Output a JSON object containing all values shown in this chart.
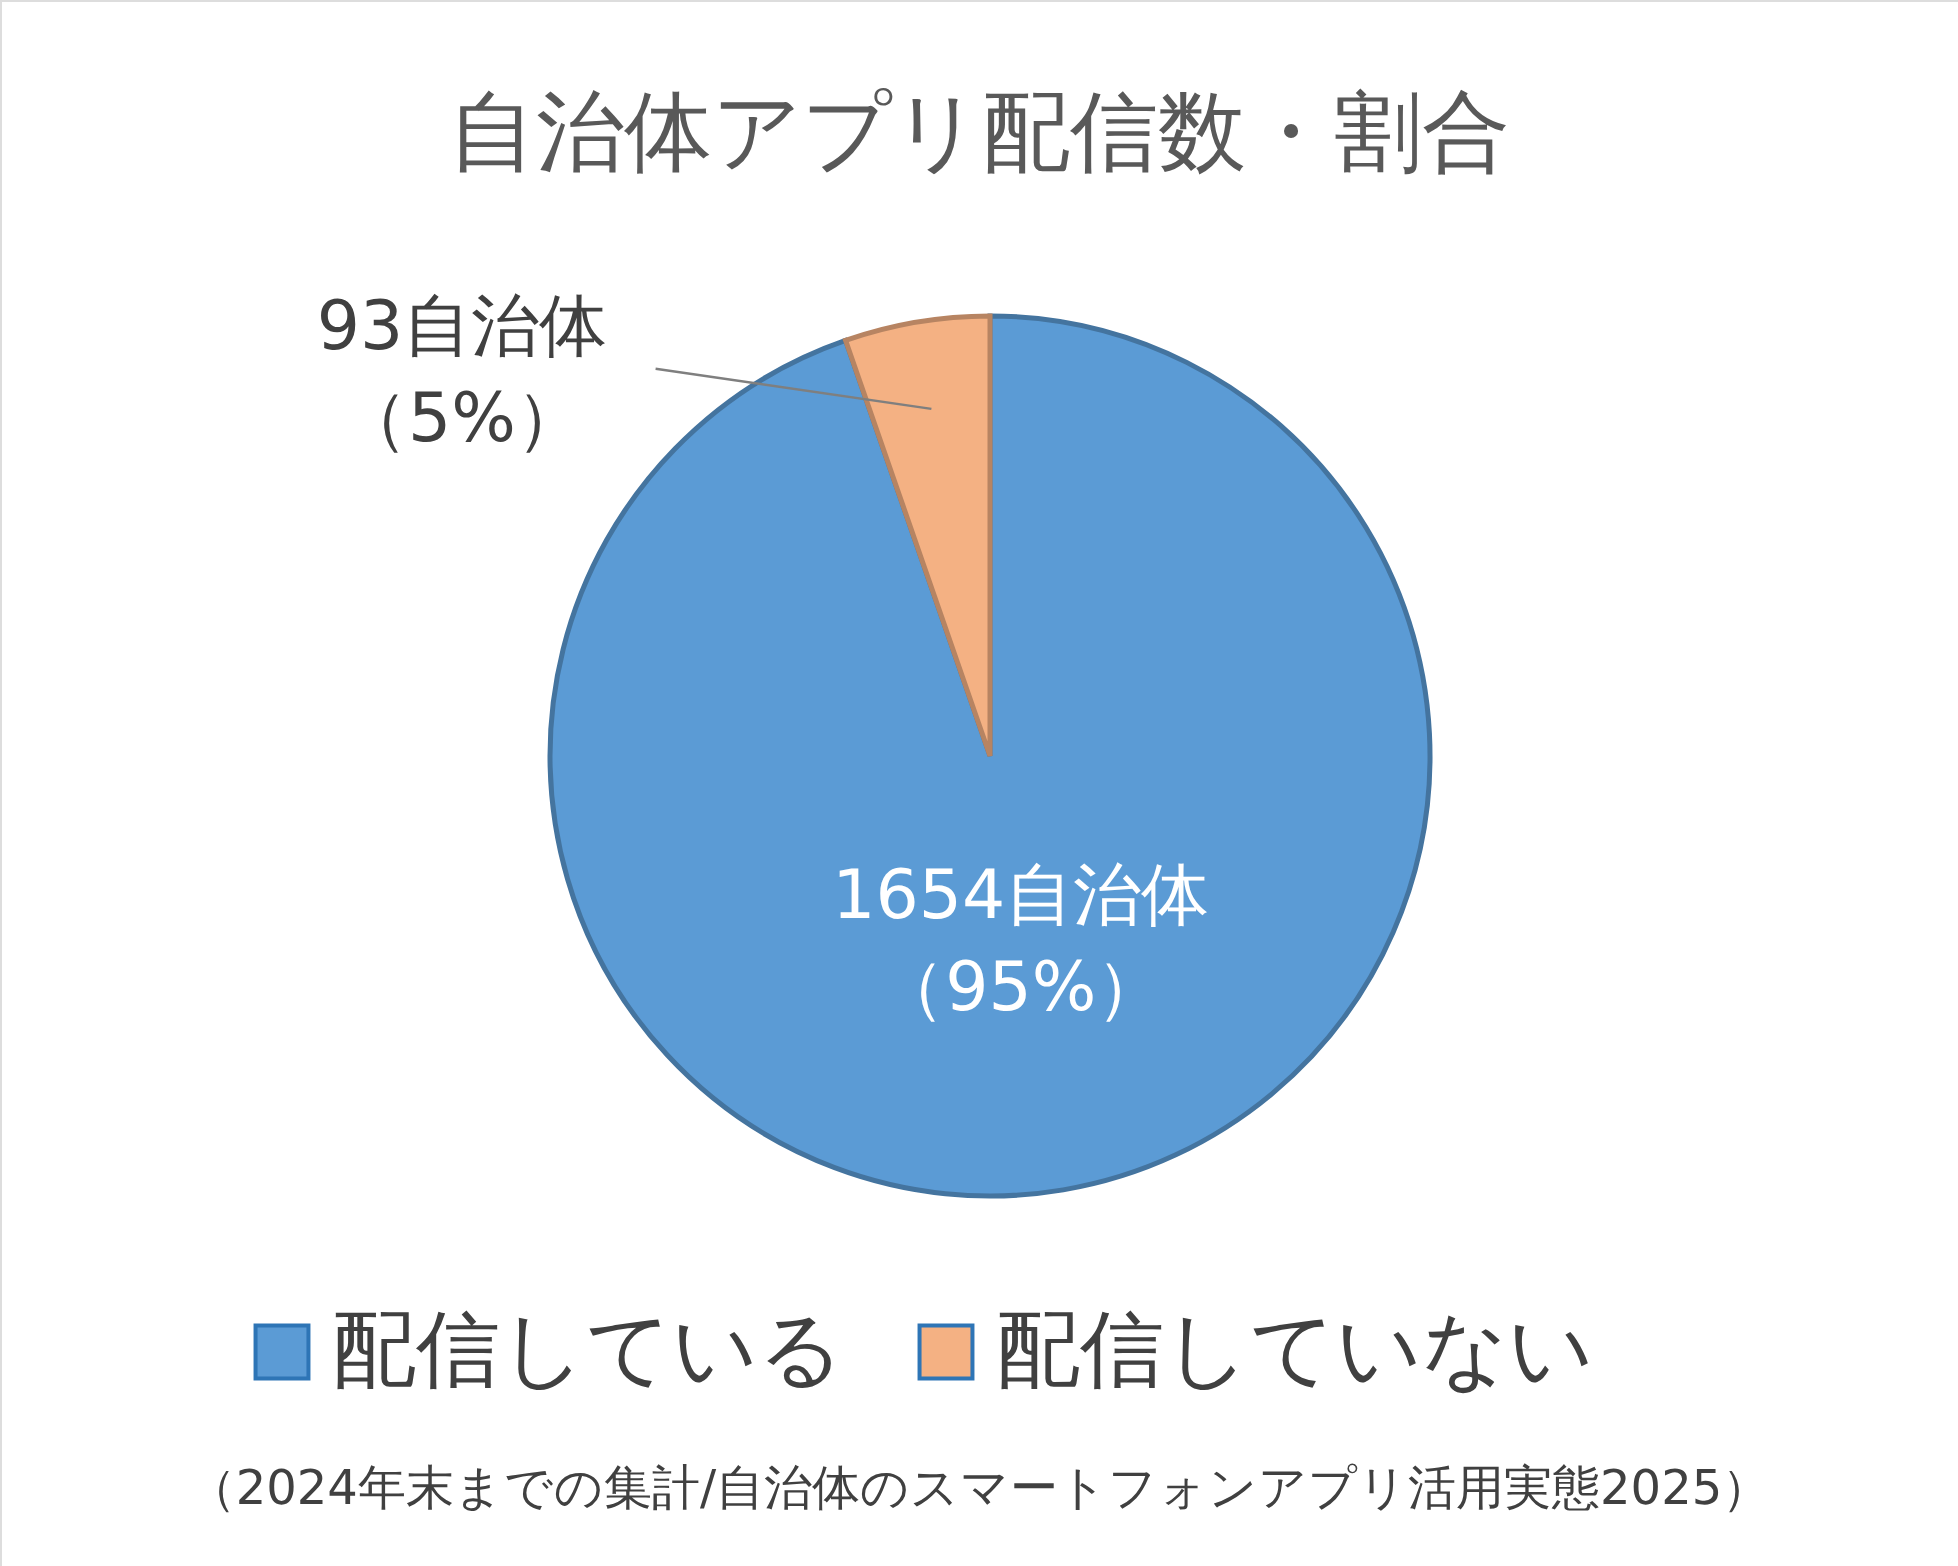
{
  "chart_data": {
    "type": "pie",
    "title": "自治体アプリ配信数・割合",
    "categories": [
      "配信している",
      "配信していない"
    ],
    "values": [
      1654,
      93
    ],
    "colors": [
      "#5b9bd5",
      "#f4b183"
    ],
    "value_labels": [
      "1654自治体（95%）",
      "93自治体（5%）"
    ],
    "legend": "bottom",
    "annotations": [
      "（2024年末までの集計/自治体のスマートフォンアプリ活用実態2025）"
    ]
  }
}
